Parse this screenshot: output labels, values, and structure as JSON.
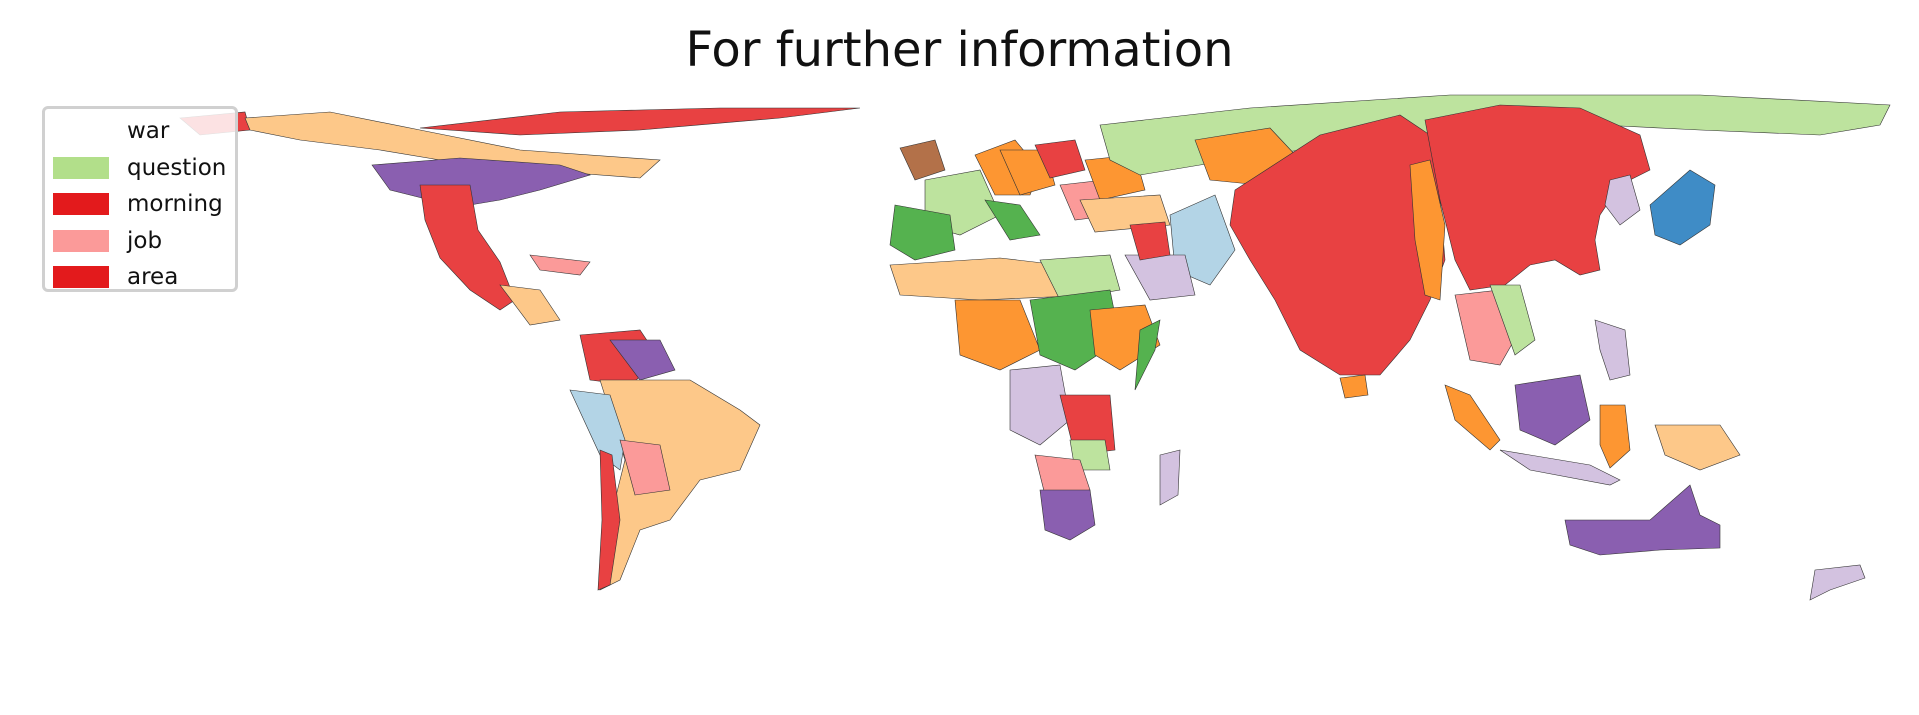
{
  "title": "For further information",
  "legend": {
    "items": [
      {
        "label": "war",
        "color": "#ffffff"
      },
      {
        "label": "question",
        "color": "#b2df8a"
      },
      {
        "label": "morning",
        "color": "#e31a1c"
      },
      {
        "label": "job",
        "color": "#fb9a99"
      },
      {
        "label": "area",
        "color": "#e31a1c"
      }
    ]
  },
  "palette": {
    "red": "#e84142",
    "orange": "#fd9632",
    "peach": "#fdc889",
    "purple": "#8a5fb0",
    "lavender": "#d3c2e0",
    "lightgreen": "#bde39e",
    "green": "#55b24f",
    "pink": "#f9a7a6",
    "lightblue": "#b3d4e6",
    "blue": "#3f8cc6",
    "brown": "#b37149",
    "yellow": "#fbfa9c"
  }
}
